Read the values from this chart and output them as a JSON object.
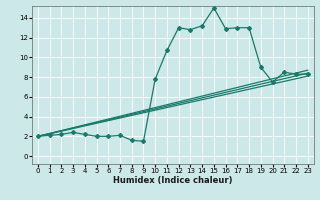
{
  "title": "",
  "xlabel": "Humidex (Indice chaleur)",
  "bg_color": "#cce8e8",
  "grid_color": "#ffffff",
  "line_color": "#1a7a6a",
  "xlim": [
    -0.5,
    23.5
  ],
  "ylim": [
    -0.8,
    15.2
  ],
  "xticks": [
    0,
    1,
    2,
    3,
    4,
    5,
    6,
    7,
    8,
    9,
    10,
    11,
    12,
    13,
    14,
    15,
    16,
    17,
    18,
    19,
    20,
    21,
    22,
    23
  ],
  "yticks": [
    0,
    2,
    4,
    6,
    8,
    10,
    12,
    14
  ],
  "series_main": {
    "x": [
      0,
      1,
      2,
      3,
      4,
      5,
      6,
      7,
      8,
      9,
      10,
      11,
      12,
      13,
      14,
      15,
      16,
      17,
      18,
      19,
      20,
      21,
      22,
      23
    ],
    "y": [
      2.0,
      2.1,
      2.2,
      2.4,
      2.2,
      2.0,
      2.0,
      2.1,
      1.6,
      1.5,
      7.8,
      10.7,
      13.0,
      12.8,
      13.2,
      15.0,
      12.9,
      13.0,
      13.0,
      9.0,
      7.5,
      8.5,
      8.3,
      8.3
    ]
  },
  "linear_lines": [
    {
      "x0": 0,
      "y0": 2.0,
      "x1": 23,
      "y1": 8.4
    },
    {
      "x0": 0,
      "y0": 2.0,
      "x1": 23,
      "y1": 8.7
    },
    {
      "x0": 0,
      "y0": 2.0,
      "x1": 23,
      "y1": 8.1
    }
  ],
  "xlabel_fontsize": 6,
  "tick_fontsize": 5,
  "marker": "D",
  "markersize": 2,
  "linewidth": 0.9
}
